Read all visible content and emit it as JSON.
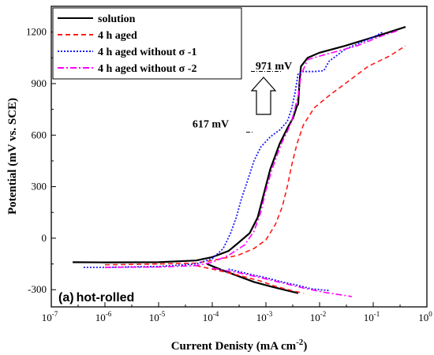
{
  "chart_data": {
    "type": "line",
    "x_scale": "log",
    "xlim": [
      1e-07,
      1
    ],
    "ylim": [
      -400,
      1350
    ],
    "xlabel": "Current Denisty (mA cm",
    "xlabel_sup": "-2",
    "xlabel_close": ")",
    "ylabel": "Potential (mV vs. SCE)",
    "x_ticks": [
      {
        "value": 1e-07,
        "base": "10",
        "exp": "-7"
      },
      {
        "value": 1e-06,
        "base": "10",
        "exp": "-6"
      },
      {
        "value": 1e-05,
        "base": "10",
        "exp": "-5"
      },
      {
        "value": 0.0001,
        "base": "10",
        "exp": "-4"
      },
      {
        "value": 0.001,
        "base": "10",
        "exp": "-3"
      },
      {
        "value": 0.01,
        "base": "10",
        "exp": "-2"
      },
      {
        "value": 0.1,
        "base": "10",
        "exp": "-1"
      },
      {
        "value": 1,
        "base": "10",
        "exp": "0"
      }
    ],
    "y_ticks": [
      {
        "value": -300,
        "label": "-300"
      },
      {
        "value": 0,
        "label": "0"
      },
      {
        "value": 300,
        "label": "300"
      },
      {
        "value": 600,
        "label": "600"
      },
      {
        "value": 900,
        "label": "900"
      },
      {
        "value": 1200,
        "label": "1200"
      }
    ],
    "legend_position": "top-left",
    "panel_label": "(a)",
    "panel_text": "hot-rolled",
    "annotations": [
      {
        "text": "971 mV",
        "x": 0.002,
        "y": 971
      },
      {
        "text": "617 mV",
        "x": 0.0006,
        "y": 617
      }
    ],
    "series": [
      {
        "name": "solution",
        "color": "#000000",
        "dash": "solid",
        "branches": [
          [
            [
              2.5e-07,
              -140
            ],
            [
              1e-06,
              -141
            ],
            [
              1e-05,
              -140
            ],
            [
              5e-05,
              -130
            ],
            [
              0.0001,
              -110
            ],
            [
              0.0002,
              -75
            ],
            [
              0.0003,
              -30
            ],
            [
              0.0005,
              30
            ],
            [
              0.0007,
              120
            ],
            [
              0.0009,
              250
            ],
            [
              0.0012,
              400
            ],
            [
              0.0018,
              550
            ],
            [
              0.0025,
              640
            ],
            [
              0.0032,
              700
            ],
            [
              0.0038,
              770
            ],
            [
              0.004,
              780
            ],
            [
              0.0042,
              900
            ],
            [
              0.0045,
              1000
            ],
            [
              0.006,
              1050
            ],
            [
              0.01,
              1080
            ],
            [
              0.03,
              1120
            ],
            [
              0.1,
              1170
            ],
            [
              0.4,
              1230
            ]
          ],
          [
            [
              8e-05,
              -150
            ],
            [
              0.00015,
              -185
            ],
            [
              0.0003,
              -220
            ],
            [
              0.0006,
              -255
            ],
            [
              0.0012,
              -280
            ],
            [
              0.0025,
              -305
            ],
            [
              0.004,
              -320
            ]
          ]
        ]
      },
      {
        "name": "4 h aged",
        "color": "#ff1a1a",
        "dash": "6 4",
        "branches": [
          [
            [
              1e-06,
              -155
            ],
            [
              1e-05,
              -150
            ],
            [
              5e-05,
              -145
            ],
            [
              0.0001,
              -130
            ],
            [
              0.0003,
              -100
            ],
            [
              0.0006,
              -60
            ],
            [
              0.001,
              -10
            ],
            [
              0.0015,
              80
            ],
            [
              0.002,
              180
            ],
            [
              0.0025,
              300
            ],
            [
              0.003,
              420
            ],
            [
              0.0038,
              550
            ],
            [
              0.005,
              660
            ],
            [
              0.008,
              760
            ],
            [
              0.015,
              830
            ],
            [
              0.03,
              900
            ],
            [
              0.08,
              1000
            ],
            [
              0.2,
              1060
            ],
            [
              0.4,
              1120
            ]
          ],
          [
            [
              5e-05,
              -160
            ],
            [
              0.0001,
              -180
            ],
            [
              0.0003,
              -215
            ],
            [
              0.0008,
              -250
            ],
            [
              0.0015,
              -280
            ],
            [
              0.003,
              -305
            ],
            [
              0.005,
              -320
            ]
          ]
        ]
      },
      {
        "name": "4 h aged without σ -1",
        "color": "#1a1aff",
        "dash": "2 2",
        "branches": [
          [
            [
              4e-07,
              -170
            ],
            [
              1e-06,
              -170
            ],
            [
              1e-05,
              -165
            ],
            [
              5e-05,
              -150
            ],
            [
              0.0001,
              -120
            ],
            [
              0.00016,
              -60
            ],
            [
              0.00022,
              30
            ],
            [
              0.00028,
              120
            ],
            [
              0.00035,
              230
            ],
            [
              0.00045,
              330
            ],
            [
              0.0006,
              450
            ],
            [
              0.0008,
              530
            ],
            [
              0.0012,
              590
            ],
            [
              0.0018,
              630
            ],
            [
              0.0025,
              680
            ],
            [
              0.003,
              750
            ],
            [
              0.0035,
              850
            ],
            [
              0.004,
              960
            ],
            [
              0.005,
              970
            ],
            [
              0.008,
              970
            ],
            [
              0.012,
              975
            ],
            [
              0.015,
              1030
            ],
            [
              0.03,
              1100
            ],
            [
              0.1,
              1170
            ],
            [
              0.15,
              1200
            ]
          ],
          [
            [
              0.0002,
              -180
            ],
            [
              0.0005,
              -210
            ],
            [
              0.001,
              -230
            ],
            [
              0.002,
              -255
            ],
            [
              0.004,
              -275
            ],
            [
              0.007,
              -295
            ],
            [
              0.015,
              -305
            ]
          ]
        ]
      },
      {
        "name": "4 h aged without σ -2",
        "color": "#ff00ff",
        "dash": "8 3 2 3",
        "branches": [
          [
            [
              1e-06,
              -170
            ],
            [
              1e-05,
              -168
            ],
            [
              5e-05,
              -160
            ],
            [
              0.0001,
              -140
            ],
            [
              0.0002,
              -100
            ],
            [
              0.0004,
              -40
            ],
            [
              0.0006,
              40
            ],
            [
              0.0008,
              150
            ],
            [
              0.001,
              280
            ],
            [
              0.0013,
              400
            ],
            [
              0.0016,
              480
            ],
            [
              0.002,
              560
            ],
            [
              0.0025,
              620
            ],
            [
              0.003,
              680
            ],
            [
              0.0035,
              760
            ],
            [
              0.004,
              830
            ],
            [
              0.0045,
              950
            ],
            [
              0.006,
              1040
            ],
            [
              0.01,
              1060
            ],
            [
              0.05,
              1120
            ],
            [
              0.15,
              1180
            ],
            [
              0.3,
              1210
            ]
          ],
          [
            [
              0.0001,
              -175
            ],
            [
              0.0003,
              -200
            ],
            [
              0.0008,
              -230
            ],
            [
              0.002,
              -260
            ],
            [
              0.005,
              -290
            ],
            [
              0.012,
              -315
            ],
            [
              0.025,
              -330
            ],
            [
              0.04,
              -340
            ]
          ]
        ]
      }
    ]
  }
}
